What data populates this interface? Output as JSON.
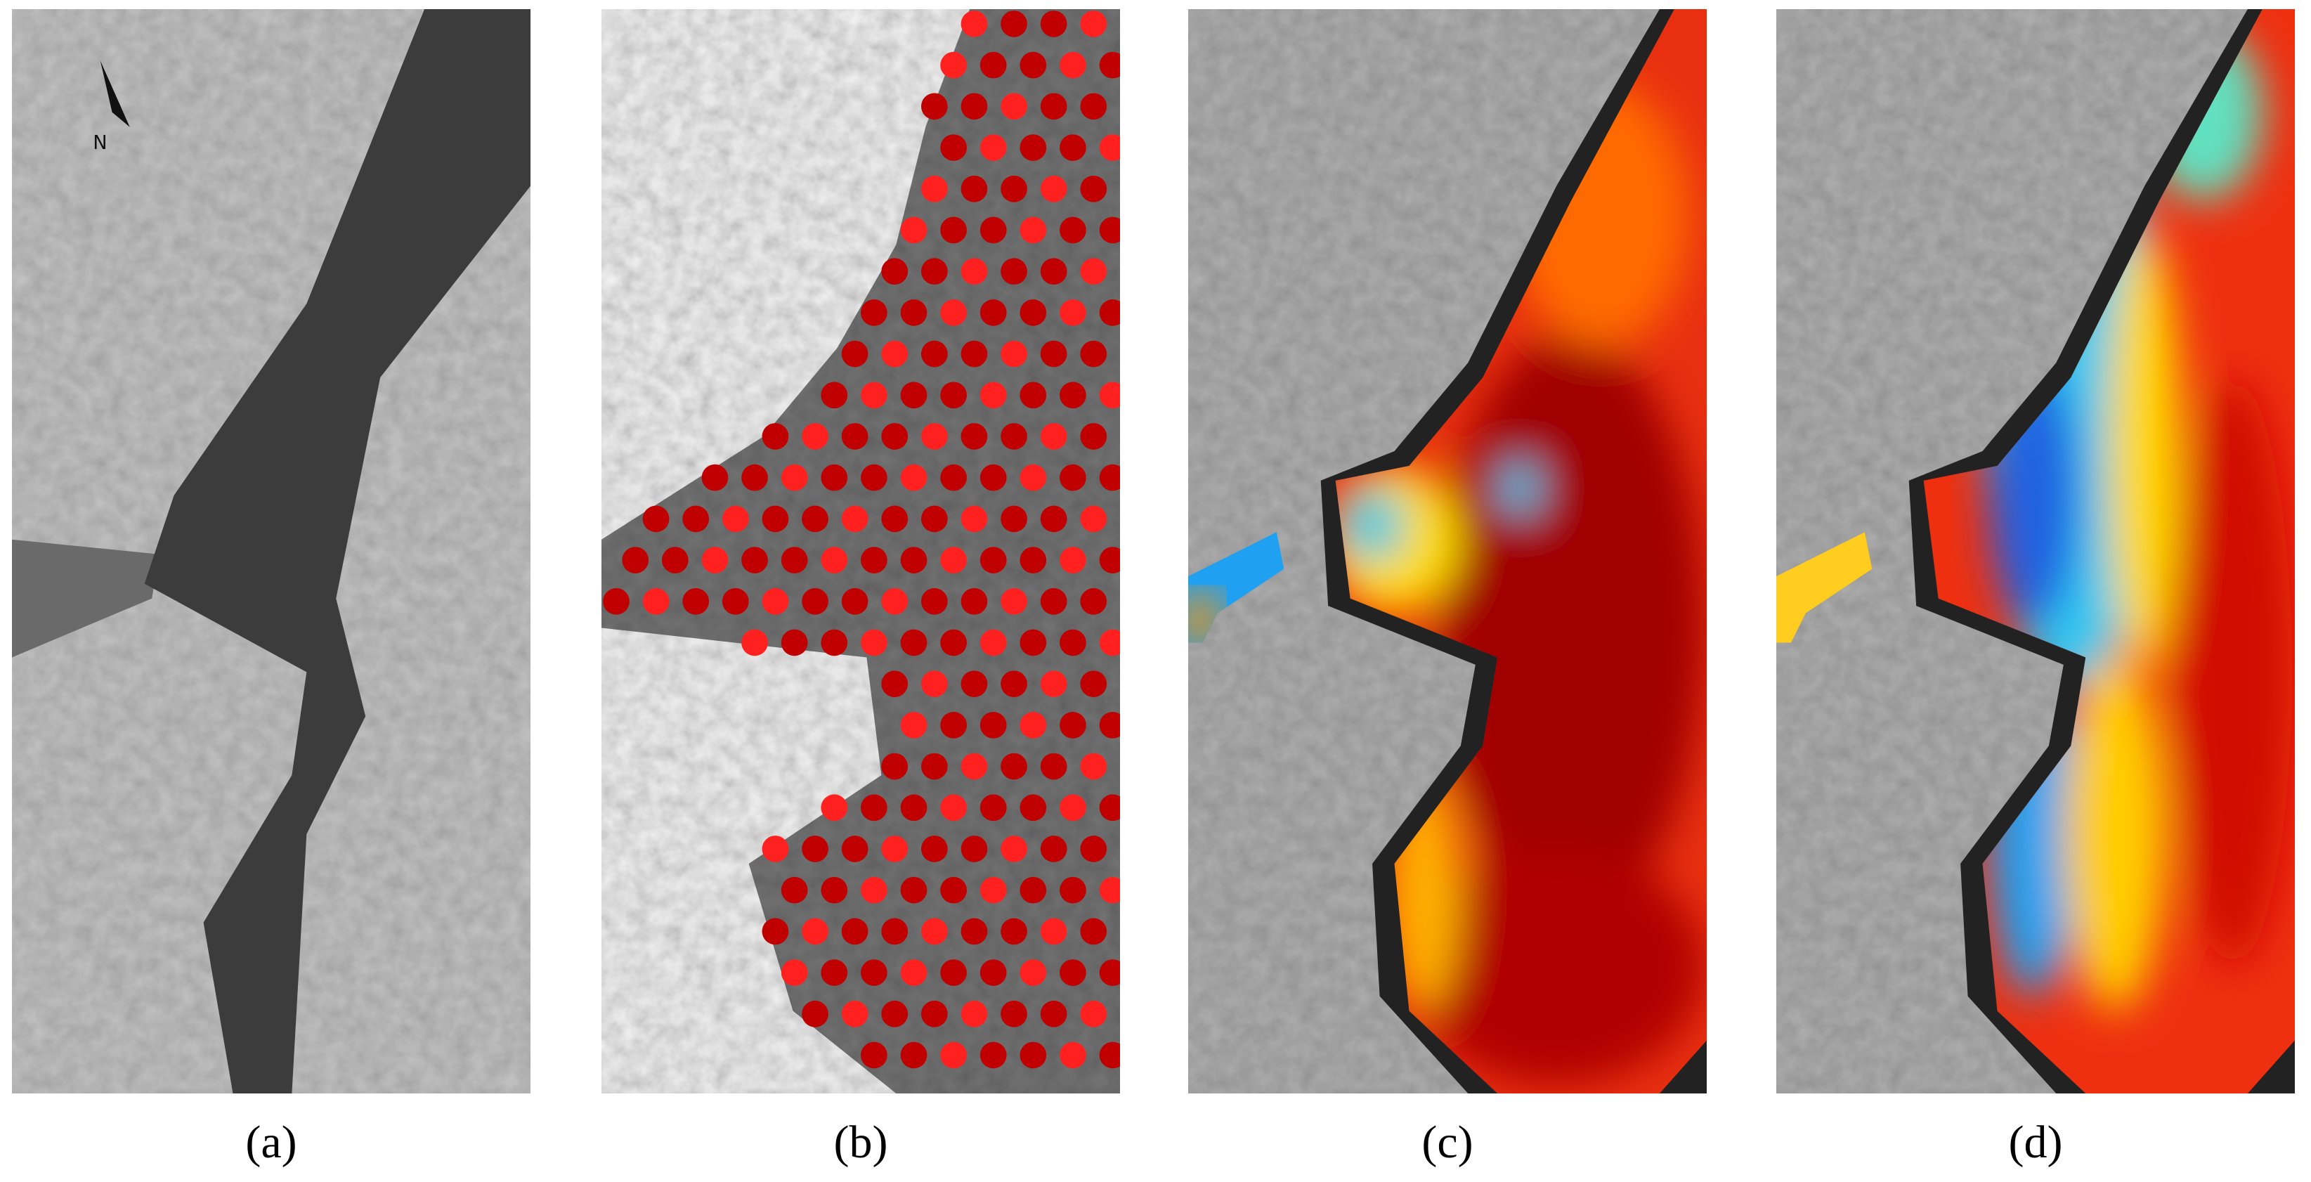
{
  "panels": [
    {
      "label": "(a)"
    },
    {
      "label": "(b)"
    },
    {
      "label": "(c)"
    },
    {
      "label": "(d)"
    }
  ],
  "north_label": "N"
}
